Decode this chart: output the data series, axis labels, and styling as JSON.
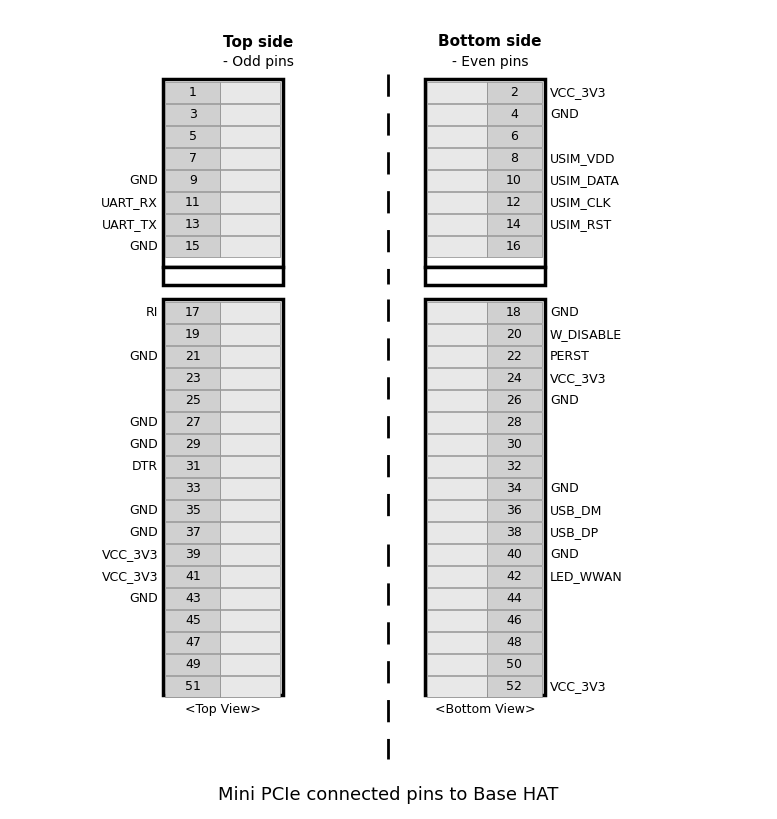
{
  "title": "Mini PCIe connected pins to Base HAT",
  "top_header": "Top side",
  "top_subheader": "- Odd pins",
  "bottom_header": "Bottom side",
  "bottom_subheader": "- Even pins",
  "top_view_label": "<Top View>",
  "bottom_view_label": "<Bottom View>",
  "bg_color": "#ffffff",
  "pin_fill_dark": "#d0d0d0",
  "pin_fill_light": "#e8e8e8",
  "border_color": "#000000",
  "text_color": "#000000",
  "left_pins": [
    {
      "num": 1,
      "label": ""
    },
    {
      "num": 3,
      "label": ""
    },
    {
      "num": 5,
      "label": ""
    },
    {
      "num": 7,
      "label": ""
    },
    {
      "num": 9,
      "label": "GND"
    },
    {
      "num": 11,
      "label": "UART_RX"
    },
    {
      "num": 13,
      "label": "UART_TX"
    },
    {
      "num": 15,
      "label": "GND"
    }
  ],
  "right_pins_top": [
    {
      "num": 2,
      "label": "VCC_3V3"
    },
    {
      "num": 4,
      "label": "GND"
    },
    {
      "num": 6,
      "label": ""
    },
    {
      "num": 8,
      "label": "USIM_VDD"
    },
    {
      "num": 10,
      "label": "USIM_DATA"
    },
    {
      "num": 12,
      "label": "USIM_CLK"
    },
    {
      "num": 14,
      "label": "USIM_RST"
    },
    {
      "num": 16,
      "label": ""
    }
  ],
  "left_pins_bottom": [
    {
      "num": 17,
      "label": "RI"
    },
    {
      "num": 19,
      "label": ""
    },
    {
      "num": 21,
      "label": "GND"
    },
    {
      "num": 23,
      "label": ""
    },
    {
      "num": 25,
      "label": ""
    },
    {
      "num": 27,
      "label": "GND"
    },
    {
      "num": 29,
      "label": "GND"
    },
    {
      "num": 31,
      "label": "DTR"
    },
    {
      "num": 33,
      "label": ""
    },
    {
      "num": 35,
      "label": "GND"
    },
    {
      "num": 37,
      "label": "GND"
    },
    {
      "num": 39,
      "label": "VCC_3V3"
    },
    {
      "num": 41,
      "label": "VCC_3V3"
    },
    {
      "num": 43,
      "label": "GND"
    },
    {
      "num": 45,
      "label": ""
    },
    {
      "num": 47,
      "label": ""
    },
    {
      "num": 49,
      "label": ""
    },
    {
      "num": 51,
      "label": ""
    }
  ],
  "right_pins_bottom": [
    {
      "num": 18,
      "label": "GND"
    },
    {
      "num": 20,
      "label": "W_DISABLE"
    },
    {
      "num": 22,
      "label": "PERST"
    },
    {
      "num": 24,
      "label": "VCC_3V3"
    },
    {
      "num": 26,
      "label": "GND"
    },
    {
      "num": 28,
      "label": ""
    },
    {
      "num": 30,
      "label": ""
    },
    {
      "num": 32,
      "label": ""
    },
    {
      "num": 34,
      "label": "GND"
    },
    {
      "num": 36,
      "label": "USB_DM"
    },
    {
      "num": 38,
      "label": "USB_DP"
    },
    {
      "num": 40,
      "label": "GND"
    },
    {
      "num": 42,
      "label": "LED_WWAN"
    },
    {
      "num": 44,
      "label": ""
    },
    {
      "num": 46,
      "label": ""
    },
    {
      "num": 48,
      "label": ""
    },
    {
      "num": 50,
      "label": ""
    },
    {
      "num": 52,
      "label": "VCC_3V3"
    }
  ]
}
